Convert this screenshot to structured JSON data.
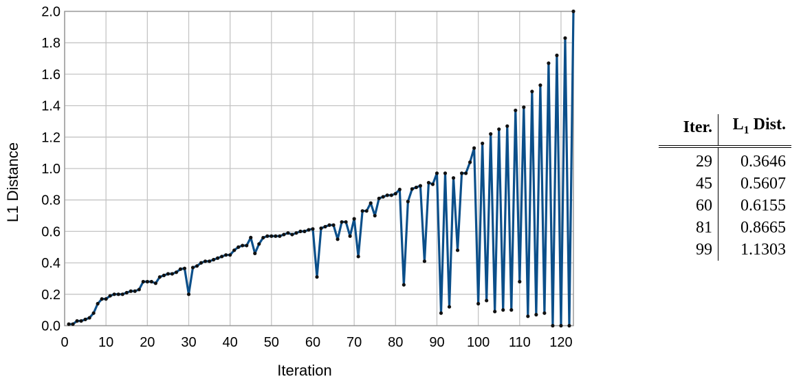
{
  "chart_data": {
    "type": "line",
    "xlabel": "Iteration",
    "ylabel": "L1 Distance",
    "xlim": [
      0,
      123
    ],
    "ylim": [
      0,
      2.0
    ],
    "xticks": [
      "0",
      "10",
      "20",
      "30",
      "40",
      "50",
      "60",
      "70",
      "80",
      "90",
      "100",
      "110",
      "120"
    ],
    "yticks": [
      "0.0",
      "0.2",
      "0.4",
      "0.6",
      "0.8",
      "1.0",
      "1.2",
      "1.4",
      "1.6",
      "1.8",
      "2.0"
    ],
    "grid": true,
    "line_color": "#0b4f8a",
    "marker_color": "#111111",
    "series": [
      {
        "x": [
          1,
          2,
          3,
          4,
          5,
          6,
          7,
          8,
          9,
          10,
          11,
          12,
          13,
          14,
          15,
          16,
          17,
          18,
          19,
          20,
          21,
          22,
          23,
          24,
          25,
          26,
          27,
          28,
          29,
          30,
          31,
          32,
          33,
          34,
          35,
          36,
          37,
          38,
          39,
          40,
          41,
          42,
          43,
          44,
          45,
          46,
          47,
          48,
          49,
          50,
          51,
          52,
          53,
          54,
          55,
          56,
          57,
          58,
          59,
          60,
          61,
          62,
          63,
          64,
          65,
          66,
          67,
          68,
          69,
          70,
          71,
          72,
          73,
          74,
          75,
          76,
          77,
          78,
          79,
          80,
          81,
          82,
          83,
          84,
          85,
          86,
          87,
          88,
          89,
          90,
          91,
          92,
          93,
          94,
          95,
          96,
          97,
          98,
          99,
          100,
          101,
          102,
          103,
          104,
          105,
          106,
          107,
          108,
          109,
          110,
          111,
          112,
          113,
          114,
          115,
          116,
          117,
          118,
          119,
          120,
          121,
          122,
          123
        ],
        "values": [
          0.01,
          0.01,
          0.03,
          0.03,
          0.04,
          0.05,
          0.08,
          0.14,
          0.17,
          0.17,
          0.19,
          0.2,
          0.2,
          0.2,
          0.21,
          0.22,
          0.22,
          0.23,
          0.28,
          0.28,
          0.28,
          0.27,
          0.31,
          0.32,
          0.33,
          0.33,
          0.34,
          0.36,
          0.3646,
          0.2,
          0.37,
          0.38,
          0.4,
          0.41,
          0.41,
          0.42,
          0.43,
          0.44,
          0.45,
          0.45,
          0.48,
          0.5,
          0.51,
          0.51,
          0.5607,
          0.46,
          0.52,
          0.56,
          0.57,
          0.57,
          0.57,
          0.57,
          0.58,
          0.59,
          0.58,
          0.59,
          0.6,
          0.6,
          0.61,
          0.6155,
          0.31,
          0.62,
          0.63,
          0.64,
          0.64,
          0.55,
          0.66,
          0.66,
          0.57,
          0.68,
          0.44,
          0.73,
          0.73,
          0.78,
          0.7,
          0.81,
          0.82,
          0.83,
          0.83,
          0.84,
          0.8665,
          0.26,
          0.79,
          0.87,
          0.88,
          0.89,
          0.41,
          0.91,
          0.9,
          0.97,
          0.08,
          0.97,
          0.12,
          0.94,
          0.48,
          0.97,
          0.97,
          1.04,
          1.1303,
          0.14,
          1.16,
          0.16,
          1.22,
          0.09,
          1.25,
          0.1,
          1.27,
          0.1,
          1.37,
          0.28,
          1.39,
          0.06,
          1.49,
          0.07,
          1.53,
          0.08,
          1.67,
          0.0,
          1.72,
          0.0,
          1.83,
          0.0,
          2.0
        ]
      }
    ]
  },
  "table": {
    "headers": [
      "Iter.",
      "L1 Dist."
    ],
    "header_left": "Iter.",
    "header_right_main": "L",
    "header_right_sub": "1",
    "header_right_rest": " Dist.",
    "rows": [
      [
        "29",
        "0.3646"
      ],
      [
        "45",
        "0.5607"
      ],
      [
        "60",
        "0.6155"
      ],
      [
        "81",
        "0.8665"
      ],
      [
        "99",
        "1.1303"
      ]
    ]
  }
}
